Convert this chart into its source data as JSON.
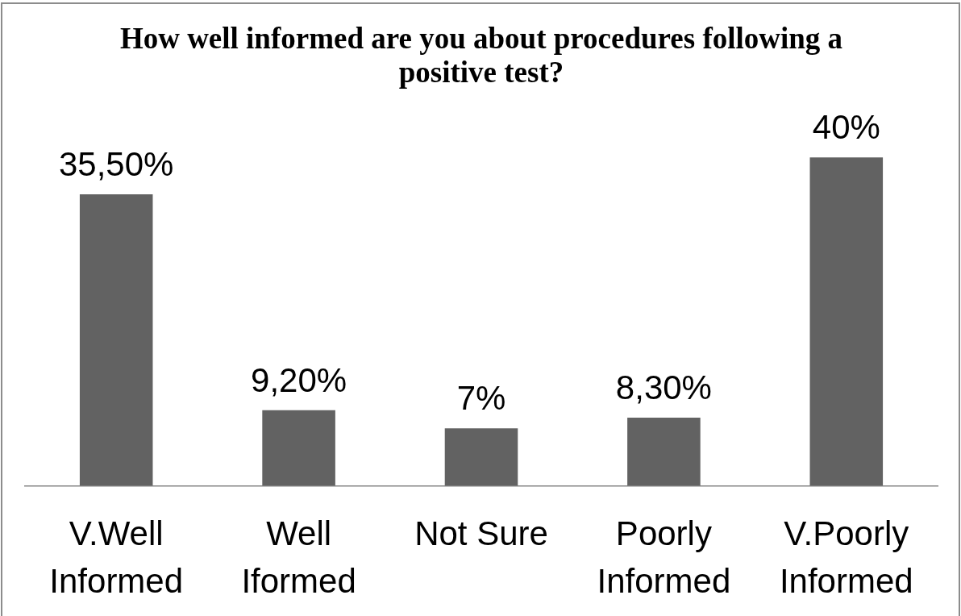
{
  "chart_data": {
    "type": "bar",
    "title": "How well informed are you about procedures following a positive test?",
    "categories": [
      "V.Well Informed",
      "Well Iformed",
      "Not Sure",
      "Poorly Informed",
      "V.Poorly Informed"
    ],
    "values": [
      35.5,
      9.2,
      7,
      8.3,
      40
    ],
    "value_labels": [
      "35,50%",
      "9,20%",
      "7%",
      "8,30%",
      "40%"
    ],
    "color": "#626262",
    "tick_labels": "x"
  }
}
